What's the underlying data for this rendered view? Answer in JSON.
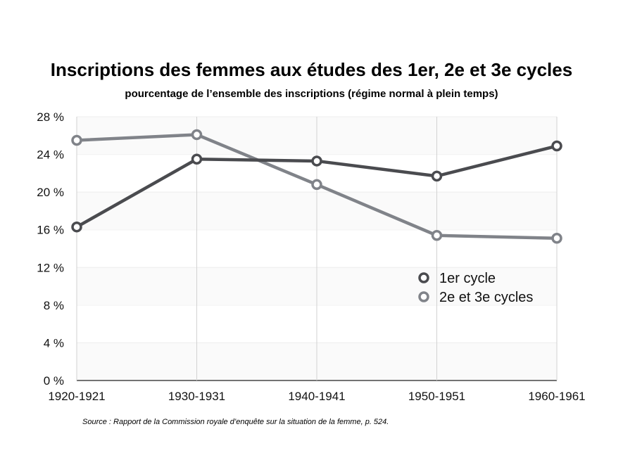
{
  "chart_data": {
    "type": "line",
    "title": "Inscriptions des femmes aux études des 1er, 2e et 3e cycles",
    "subtitle": "pourcentage de l’ensemble des inscriptions (régime normal à plein temps)",
    "xlabel": "",
    "ylabel": "",
    "categories": [
      "1920-1921",
      "1930-1931",
      "1940-1941",
      "1950-1951",
      "1960-1961"
    ],
    "ylim": [
      0,
      28
    ],
    "yticks": [
      0,
      4,
      8,
      12,
      16,
      20,
      24,
      28
    ],
    "ytick_labels": [
      "0 %",
      "4 %",
      "8 %",
      "12 %",
      "16 %",
      "20 %",
      "24 %",
      "28 %"
    ],
    "grid": "horizontal bands",
    "legend_position": "right-middle",
    "series": [
      {
        "name": "1er cycle",
        "values": [
          16.3,
          23.5,
          23.3,
          21.7,
          24.9
        ],
        "color": "#4a4b4f"
      },
      {
        "name": "2e et 3e cycles",
        "values": [
          25.5,
          26.1,
          20.8,
          15.4,
          15.1
        ],
        "color": "#808389"
      }
    ]
  },
  "source": "Source : Rapport de la Commission royale d’enquête sur la situation de la femme, p. 524."
}
